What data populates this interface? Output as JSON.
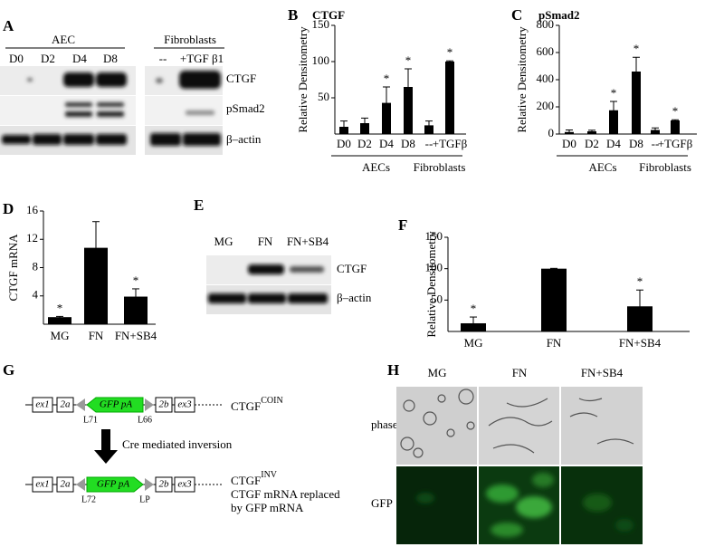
{
  "panel_labels": [
    "A",
    "B",
    "C",
    "D",
    "E",
    "F",
    "G",
    "H"
  ],
  "blot_a": {
    "group_labels": [
      "AEC",
      "Fibroblasts"
    ],
    "lanes": [
      "D0",
      "D2",
      "D4",
      "D8",
      "--",
      "+TGF β1"
    ],
    "rows": [
      "CTGF",
      "pSmad2",
      "β–actin"
    ]
  },
  "blot_e": {
    "lanes": [
      "MG",
      "FN",
      "FN+SB4"
    ],
    "rows": [
      "CTGF",
      "β–actin"
    ]
  },
  "diagram_g": {
    "top": {
      "elements": [
        "ex1",
        "2a",
        "GFP pA",
        "2b",
        "ex3"
      ],
      "sites": [
        "L71",
        "L66"
      ],
      "name": "CTGF",
      "superscript": "COIN"
    },
    "arrow": "Cre mediated inversion",
    "bottom": {
      "elements": [
        "ex1",
        "2a",
        "GFP pA",
        "2b",
        "ex3"
      ],
      "sites": [
        "L72",
        "LP"
      ],
      "name": "CTGF",
      "superscript": "INV",
      "notes": [
        "CTGF mRNA replaced",
        "by GFP mRNA"
      ]
    }
  },
  "micrographs_h": {
    "columns": [
      "MG",
      "FN",
      "FN+SB4"
    ],
    "rows": [
      "phase",
      "GFP"
    ]
  },
  "chart_data": [
    {
      "type": "bar",
      "title": "CTGF",
      "ylabel": "Relative Densitometry",
      "categories": [
        "D0",
        "D2",
        "D4",
        "D8",
        "--",
        "+TGFβ"
      ],
      "values": [
        10,
        15,
        43,
        65,
        12,
        100
      ],
      "errors": [
        8,
        7,
        22,
        25,
        6,
        1
      ],
      "significance": [
        null,
        null,
        "*",
        "*",
        null,
        "*"
      ],
      "groups": [
        "AECs",
        "Fibroblasts"
      ],
      "color": "#000000",
      "ylim": [
        0,
        150
      ],
      "yticks": [
        50,
        100,
        150
      ]
    },
    {
      "type": "bar",
      "title": "pSmad2",
      "ylabel": "Relative Densitometry",
      "categories": [
        "D0",
        "D2",
        "D4",
        "D8",
        "--",
        "+TGFβ"
      ],
      "values": [
        15,
        20,
        175,
        460,
        30,
        100
      ],
      "errors": [
        15,
        8,
        65,
        105,
        15,
        5
      ],
      "significance": [
        null,
        null,
        "*",
        "*",
        null,
        "*"
      ],
      "groups": [
        "AECs",
        "Fibroblasts"
      ],
      "color": "#000000",
      "ylim": [
        0,
        800
      ],
      "yticks": [
        0,
        200,
        400,
        600,
        800
      ]
    },
    {
      "type": "bar",
      "ylabel": "CTGF mRNA",
      "categories": [
        "MG",
        "FN",
        "FN+SB4"
      ],
      "values": [
        1,
        10.8,
        3.9
      ],
      "errors": [
        0.1,
        3.7,
        1.1
      ],
      "significance": [
        "*",
        null,
        "*"
      ],
      "color": "#000000",
      "ylim": [
        0,
        16
      ],
      "yticks": [
        4,
        8,
        12,
        16
      ]
    },
    {
      "type": "bar",
      "ylabel": "Relative Densitometry",
      "categories": [
        "MG",
        "FN",
        "FN+SB4"
      ],
      "values": [
        13,
        100,
        40
      ],
      "errors": [
        10,
        0.5,
        26
      ],
      "significance": [
        "*",
        null,
        "*"
      ],
      "color": "#000000",
      "ylim": [
        0,
        150
      ],
      "yticks": [
        50,
        100,
        150
      ]
    }
  ]
}
